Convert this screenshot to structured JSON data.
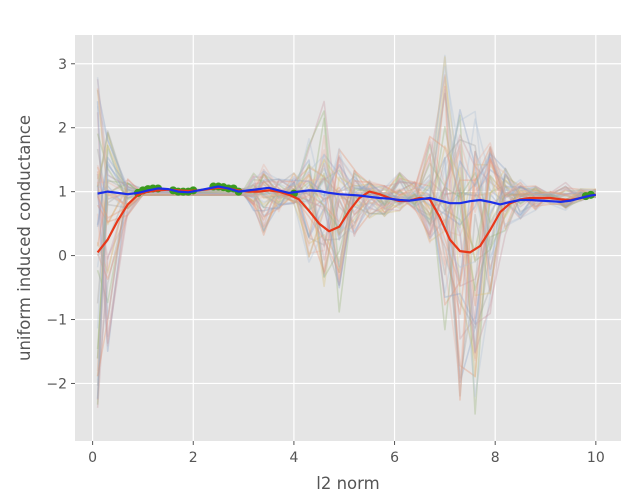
{
  "chart_data": {
    "type": "line",
    "title": "",
    "xlabel": "l2 norm",
    "ylabel": "uniform induced conductance",
    "xlim": [
      -0.35,
      10.5
    ],
    "ylim": [
      -2.9,
      3.45
    ],
    "x_ticks": [
      0,
      2,
      4,
      6,
      8,
      10
    ],
    "y_ticks": [
      -2,
      -1,
      0,
      1,
      2,
      3
    ],
    "grid": true,
    "style": "ggplot",
    "legend": null,
    "colors": {
      "plot_background": "#e5e5e5",
      "grid": "#ffffff",
      "highlight_red": "#e8381a",
      "highlight_blue": "#1b2ee8",
      "marker_green": "#3a9a1e",
      "tick_label": "#555555"
    },
    "x": [
      0.1,
      0.3,
      0.5,
      0.7,
      0.9,
      1.1,
      1.3,
      1.5,
      1.7,
      1.9,
      2.1,
      2.3,
      2.5,
      2.7,
      2.9,
      3.1,
      3.3,
      3.5,
      3.7,
      3.9,
      4.1,
      4.3,
      4.5,
      4.7,
      4.9,
      5.1,
      5.3,
      5.5,
      5.7,
      5.9,
      6.1,
      6.3,
      6.5,
      6.7,
      6.9,
      7.1,
      7.3,
      7.5,
      7.7,
      7.9,
      8.1,
      8.3,
      8.5,
      8.7,
      8.9,
      9.1,
      9.3,
      9.5,
      9.7,
      9.9,
      10.0
    ],
    "series": [
      {
        "name": "red-highlight",
        "color": "#e8381a",
        "values": [
          0.05,
          0.25,
          0.55,
          0.8,
          0.95,
          1.0,
          1.02,
          1.03,
          1.02,
          1.01,
          1.02,
          1.04,
          1.06,
          1.05,
          1.02,
          1.0,
          1.0,
          1.02,
          1.0,
          0.95,
          0.88,
          0.7,
          0.5,
          0.38,
          0.45,
          0.7,
          0.9,
          1.0,
          0.96,
          0.9,
          0.85,
          0.86,
          0.9,
          0.88,
          0.6,
          0.25,
          0.07,
          0.05,
          0.15,
          0.4,
          0.68,
          0.82,
          0.88,
          0.9,
          0.9,
          0.9,
          0.88,
          0.87,
          0.9,
          0.94,
          0.95
        ]
      },
      {
        "name": "blue-highlight",
        "color": "#1b2ee8",
        "values": [
          0.97,
          1.0,
          0.98,
          0.96,
          0.98,
          1.02,
          1.05,
          1.04,
          1.0,
          0.99,
          1.02,
          1.05,
          1.08,
          1.05,
          1.0,
          1.02,
          1.04,
          1.06,
          1.02,
          0.98,
          1.0,
          1.02,
          1.01,
          0.98,
          0.96,
          0.95,
          0.94,
          0.92,
          0.9,
          0.89,
          0.87,
          0.86,
          0.88,
          0.9,
          0.86,
          0.82,
          0.82,
          0.85,
          0.87,
          0.84,
          0.8,
          0.84,
          0.87,
          0.87,
          0.86,
          0.85,
          0.84,
          0.86,
          0.9,
          0.94,
          0.95
        ]
      }
    ],
    "markers": {
      "name": "green-points",
      "color": "#3a9a1e",
      "points": [
        [
          0.9,
          0.98
        ],
        [
          1.0,
          1.02
        ],
        [
          1.1,
          1.04
        ],
        [
          1.2,
          1.05
        ],
        [
          1.3,
          1.05
        ],
        [
          1.6,
          1.02
        ],
        [
          1.7,
          1.0
        ],
        [
          1.8,
          1.0
        ],
        [
          1.9,
          1.0
        ],
        [
          2.0,
          1.02
        ],
        [
          2.4,
          1.08
        ],
        [
          2.5,
          1.08
        ],
        [
          2.6,
          1.07
        ],
        [
          2.7,
          1.05
        ],
        [
          2.8,
          1.05
        ],
        [
          2.9,
          1.0
        ],
        [
          4.0,
          0.97
        ],
        [
          9.8,
          0.93
        ],
        [
          9.9,
          0.95
        ]
      ]
    },
    "background_lines_count": 50,
    "background_envelope": {
      "x": [
        0.1,
        0.3,
        0.7,
        1.0,
        3.0,
        3.2,
        3.4,
        3.7,
        4.0,
        4.3,
        4.6,
        4.9,
        5.2,
        5.5,
        5.8,
        6.1,
        6.4,
        6.7,
        7.0,
        7.3,
        7.6,
        7.9,
        8.2,
        8.5,
        8.8,
        9.1,
        9.4,
        9.7,
        10.0
      ],
      "upper": [
        2.8,
        1.95,
        1.2,
        1.05,
        1.05,
        1.3,
        1.45,
        1.2,
        1.3,
        1.95,
        2.65,
        1.7,
        1.35,
        1.2,
        1.1,
        1.3,
        1.2,
        1.9,
        3.2,
        2.6,
        2.6,
        1.85,
        1.4,
        1.2,
        1.1,
        1.0,
        1.15,
        1.05,
        1.05
      ],
      "lower": [
        -2.65,
        -1.6,
        0.6,
        0.95,
        0.95,
        0.7,
        0.15,
        0.65,
        0.8,
        -0.2,
        -0.5,
        -0.95,
        0.3,
        0.55,
        0.6,
        0.7,
        0.7,
        0.2,
        -1.45,
        -2.3,
        -2.5,
        -0.95,
        0.3,
        0.55,
        0.7,
        0.8,
        0.65,
        0.85,
        0.9
      ]
    },
    "background_palette": [
      "#8da3c9",
      "#e59476",
      "#d8c07a",
      "#9ab47a",
      "#a7a7a7",
      "#c99aa4",
      "#e8b5a6",
      "#b3c2d8"
    ]
  }
}
